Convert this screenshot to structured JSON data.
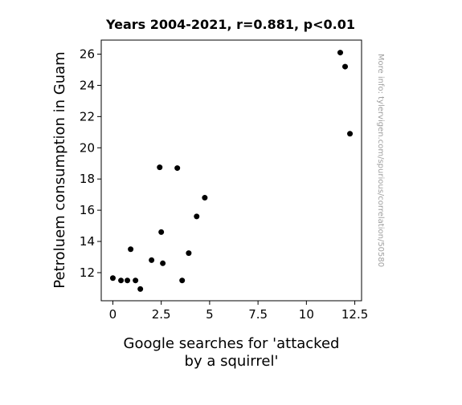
{
  "chart_data": {
    "type": "scatter",
    "title": "Years 2004-2021, r=0.881, p<0.01",
    "xlabel_lines": [
      "Google searches for 'attacked",
      "by a squirrel'"
    ],
    "ylabel": "Petroluem consumption in Guam",
    "xlim": [
      -0.6,
      12.85
    ],
    "ylim": [
      10.2,
      26.9
    ],
    "xticks": [
      0,
      2.5,
      5,
      7.5,
      10,
      12.5
    ],
    "xtick_labels": [
      "0",
      "2.5",
      "5",
      "7.5",
      "10",
      "12.5"
    ],
    "yticks": [
      12,
      14,
      16,
      18,
      20,
      22,
      24,
      26
    ],
    "ytick_labels": [
      "12",
      "14",
      "16",
      "18",
      "20",
      "22",
      "24",
      "26"
    ],
    "grid": false,
    "marker_color": "#000000",
    "points": [
      {
        "x": 0.0,
        "y": 11.65
      },
      {
        "x": 0.42,
        "y": 11.5
      },
      {
        "x": 0.75,
        "y": 11.5
      },
      {
        "x": 1.17,
        "y": 11.5
      },
      {
        "x": 1.42,
        "y": 10.95
      },
      {
        "x": 0.92,
        "y": 13.5
      },
      {
        "x": 2.0,
        "y": 12.8
      },
      {
        "x": 2.42,
        "y": 18.75
      },
      {
        "x": 2.5,
        "y": 14.6
      },
      {
        "x": 2.58,
        "y": 12.6
      },
      {
        "x": 3.33,
        "y": 18.7
      },
      {
        "x": 3.58,
        "y": 11.5
      },
      {
        "x": 3.92,
        "y": 13.25
      },
      {
        "x": 4.33,
        "y": 15.6
      },
      {
        "x": 4.75,
        "y": 16.8
      },
      {
        "x": 11.75,
        "y": 26.1
      },
      {
        "x": 12.0,
        "y": 25.2
      },
      {
        "x": 12.25,
        "y": 20.9
      }
    ]
  },
  "watermark": "More info: tylervigen.com/spurious/correlation/50580"
}
